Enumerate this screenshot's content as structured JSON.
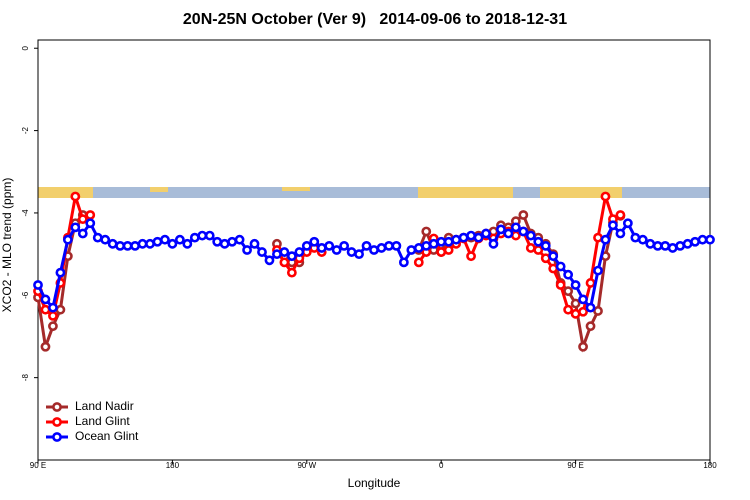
{
  "chart_data": {
    "type": "line",
    "title": "20N-25N October (Ver 9)   2014-09-06 to 2018-12-31",
    "xlabel": "Longitude",
    "ylabel": "XCO2 - MLO trend (ppm)",
    "x": [
      90,
      95,
      100,
      105,
      110,
      115,
      120,
      125,
      130,
      135,
      140,
      145,
      150,
      155,
      160,
      165,
      170,
      175,
      180,
      185,
      190,
      195,
      200,
      205,
      210,
      215,
      220,
      225,
      230,
      235,
      240,
      245,
      250,
      255,
      260,
      265,
      270,
      275,
      280,
      285,
      290,
      295,
      300,
      305,
      310,
      315,
      320,
      325,
      330,
      335,
      340,
      345,
      350,
      355,
      360,
      365,
      370,
      375,
      380,
      385,
      390,
      395,
      400,
      405,
      410,
      415,
      420,
      425,
      430,
      435,
      440,
      445,
      450,
      455,
      460,
      465,
      470,
      475,
      480,
      485,
      490,
      495,
      500,
      505,
      510,
      515,
      520,
      525,
      530,
      535,
      540
    ],
    "xlim": [
      90,
      540
    ],
    "xticks": [
      {
        "value": 90,
        "label": "90 E"
      },
      180,
      {
        "value": 270,
        "label": "90 W"
      },
      {
        "value": 360,
        "label": "0"
      },
      {
        "value": 450,
        "label": "90 E"
      },
      {
        "value": 540,
        "label": "180"
      }
    ],
    "ylim": [
      -10,
      0.2
    ],
    "yticks": [
      0,
      -2,
      -4,
      -6,
      -8
    ],
    "legend": "bottom-left",
    "series": [
      {
        "name": "Land Nadir",
        "color": "#a52a2a",
        "values": [
          -6.05,
          -7.25,
          -6.75,
          -6.35,
          -5.05,
          -4.25,
          -4.05,
          null,
          null,
          null,
          null,
          null,
          null,
          null,
          null,
          null,
          null,
          null,
          null,
          null,
          null,
          null,
          null,
          null,
          null,
          null,
          null,
          null,
          null,
          null,
          null,
          null,
          -4.75,
          -5.05,
          -5.2,
          -5.2,
          -4.9,
          -4.75,
          null,
          null,
          null,
          null,
          null,
          null,
          null,
          null,
          null,
          null,
          null,
          null,
          null,
          -4.9,
          -4.45,
          -4.9,
          -4.95,
          -4.6,
          -4.65,
          -4.6,
          -4.6,
          -4.55,
          -4.5,
          -4.45,
          -4.3,
          -4.35,
          -4.2,
          -4.05,
          -4.5,
          -4.6,
          -4.75,
          -5.0,
          -5.7,
          -5.9,
          -6.2,
          -7.25,
          -6.75,
          -6.38,
          -5.05,
          -4.23,
          -4.07,
          null,
          null,
          null,
          null,
          null,
          null,
          null,
          null,
          null,
          null,
          null,
          null
        ]
      },
      {
        "name": "Land Glint",
        "color": "#ff0000",
        "values": [
          -5.9,
          -6.35,
          -6.5,
          -5.7,
          -4.6,
          -3.6,
          -4.15,
          -4.05,
          null,
          null,
          null,
          null,
          null,
          null,
          null,
          null,
          null,
          null,
          null,
          null,
          null,
          null,
          null,
          null,
          null,
          null,
          null,
          null,
          null,
          null,
          null,
          null,
          -4.9,
          -5.2,
          -5.45,
          -5.1,
          -4.95,
          -4.85,
          -4.95,
          null,
          null,
          null,
          null,
          null,
          null,
          null,
          null,
          null,
          null,
          null,
          null,
          -5.2,
          -4.95,
          -4.62,
          -4.95,
          -4.9,
          -4.75,
          -4.62,
          -5.05,
          -4.62,
          -4.55,
          -4.62,
          -4.5,
          -4.45,
          -4.55,
          -4.45,
          -4.85,
          -4.9,
          -5.1,
          -5.35,
          -5.75,
          -6.35,
          -6.45,
          -6.4,
          -5.7,
          -4.6,
          -3.6,
          -4.15,
          -4.05,
          null,
          null,
          null,
          null,
          null,
          null,
          null,
          null,
          null,
          null,
          null,
          null
        ]
      },
      {
        "name": "Ocean Glint",
        "color": "#0000ff",
        "values": [
          -5.75,
          -6.1,
          -6.3,
          -5.45,
          -4.65,
          -4.35,
          -4.5,
          -4.25,
          -4.6,
          -4.65,
          -4.75,
          -4.8,
          -4.8,
          -4.8,
          -4.75,
          -4.75,
          -4.7,
          -4.65,
          -4.75,
          -4.65,
          -4.75,
          -4.6,
          -4.55,
          -4.55,
          -4.7,
          -4.75,
          -4.7,
          -4.65,
          -4.9,
          -4.75,
          -4.95,
          -5.15,
          -5.0,
          -4.95,
          -5.05,
          -4.95,
          -4.8,
          -4.7,
          -4.85,
          -4.8,
          -4.9,
          -4.8,
          -4.95,
          -5.0,
          -4.8,
          -4.9,
          -4.85,
          -4.8,
          -4.8,
          -5.2,
          -4.9,
          -4.85,
          -4.8,
          -4.75,
          -4.7,
          -4.7,
          -4.65,
          -4.6,
          -4.55,
          -4.6,
          -4.5,
          -4.75,
          -4.4,
          -4.5,
          -4.35,
          -4.45,
          -4.55,
          -4.7,
          -4.8,
          -5.05,
          -5.3,
          -5.5,
          -5.75,
          -6.1,
          -6.3,
          -5.4,
          -4.65,
          -4.3,
          -4.5,
          -4.25,
          -4.6,
          -4.65,
          -4.75,
          -4.8,
          -4.8,
          -4.85,
          -4.8,
          -4.75,
          -4.7,
          -4.65,
          -4.65
        ]
      }
    ]
  }
}
